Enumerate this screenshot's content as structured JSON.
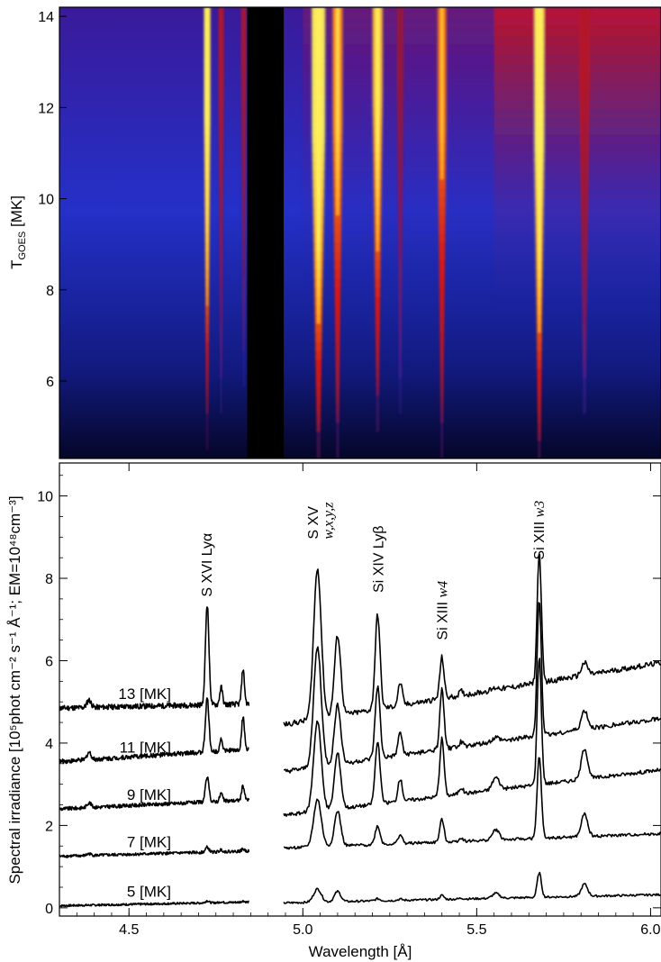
{
  "chart_data": [
    {
      "type": "heatmap",
      "ylabel_main": "T",
      "ylabel_sub": "GOES",
      "ylabel_rest": " [MK]",
      "xlim": [
        4.3,
        6.03
      ],
      "ylim": [
        4.3,
        14.2
      ],
      "yticks": [
        6,
        8,
        10,
        12,
        14
      ],
      "gap": [
        4.84,
        4.945
      ],
      "lines": [
        {
          "x": 4.725,
          "strength": 1.0,
          "width": 0.006,
          "onset": 5.2
        },
        {
          "x": 4.765,
          "strength": 0.45,
          "width": 0.005,
          "onset": 6.0
        },
        {
          "x": 4.83,
          "strength": 0.4,
          "width": 0.005,
          "onset": 6.5
        },
        {
          "x": 5.045,
          "strength": 1.0,
          "width": 0.012,
          "onset": 4.8
        },
        {
          "x": 5.1,
          "strength": 0.8,
          "width": 0.009,
          "onset": 5.0
        },
        {
          "x": 5.215,
          "strength": 0.9,
          "width": 0.009,
          "onset": 5.6
        },
        {
          "x": 5.28,
          "strength": 0.35,
          "width": 0.006,
          "onset": 6.0
        },
        {
          "x": 5.4,
          "strength": 0.75,
          "width": 0.008,
          "onset": 5.0
        },
        {
          "x": 5.68,
          "strength": 1.0,
          "width": 0.009,
          "onset": 4.6
        },
        {
          "x": 5.81,
          "strength": 0.45,
          "width": 0.01,
          "onset": 6.0
        }
      ]
    },
    {
      "type": "line",
      "xlabel": "Wavelength [Å]",
      "ylabel": "Spectral irradiance [10⁵phot cm⁻² s⁻¹ Å⁻¹; EM=10⁴⁸cm⁻³]",
      "xlim": [
        4.3,
        6.03
      ],
      "ylim": [
        -0.2,
        10.8
      ],
      "xticks": [
        4.5,
        5.0,
        5.5,
        6.0
      ],
      "xtick_labels": [
        "4.5",
        "5.0",
        "5.5",
        "6.0"
      ],
      "yticks": [
        0,
        2,
        4,
        6,
        8,
        10
      ],
      "gap": [
        4.845,
        4.945
      ],
      "lines": [
        {
          "x": 4.725,
          "width": 0.005,
          "amp": [
            0.05,
            0.12,
            0.6,
            1.3,
            2.45
          ]
        },
        {
          "x": 4.765,
          "width": 0.004,
          "amp": [
            0.02,
            0.05,
            0.2,
            0.3,
            0.42
          ]
        },
        {
          "x": 4.828,
          "width": 0.004,
          "amp": [
            0.03,
            0.05,
            0.35,
            0.8,
            0.85
          ]
        },
        {
          "x": 4.385,
          "width": 0.006,
          "amp": [
            0.0,
            0.04,
            0.12,
            0.18,
            0.18
          ]
        },
        {
          "x": 5.042,
          "width": 0.011,
          "amp": [
            0.32,
            1.15,
            2.2,
            2.9,
            3.65
          ]
        },
        {
          "x": 5.1,
          "width": 0.009,
          "amp": [
            0.25,
            0.85,
            1.35,
            1.45,
            1.95
          ]
        },
        {
          "x": 5.215,
          "width": 0.007,
          "amp": [
            0.05,
            0.45,
            1.5,
            1.75,
            2.3
          ]
        },
        {
          "x": 5.28,
          "width": 0.006,
          "amp": [
            0.03,
            0.22,
            0.55,
            0.55,
            0.55
          ]
        },
        {
          "x": 5.4,
          "width": 0.006,
          "amp": [
            0.1,
            0.55,
            1.4,
            1.45,
            1.0
          ]
        },
        {
          "x": 5.455,
          "width": 0.006,
          "amp": [
            0.02,
            0.08,
            0.15,
            0.12,
            0.1
          ]
        },
        {
          "x": 5.555,
          "width": 0.01,
          "amp": [
            0.12,
            0.25,
            0.3,
            0.1,
            0.05
          ]
        },
        {
          "x": 5.68,
          "width": 0.006,
          "amp": [
            0.6,
            2.0,
            3.1,
            3.3,
            3.15
          ]
        },
        {
          "x": 5.81,
          "width": 0.009,
          "amp": [
            0.3,
            0.55,
            0.75,
            0.45,
            0.3
          ]
        }
      ],
      "series": [
        {
          "name": "5 [MK]",
          "baseline_left": [
            0.05,
            0.14
          ],
          "baseline_right": [
            0.12,
            0.32
          ]
        },
        {
          "name": "7 [MK]",
          "baseline_left": [
            1.25,
            1.38
          ],
          "baseline_right": [
            1.45,
            1.8
          ]
        },
        {
          "name": "9 [MK]",
          "baseline_left": [
            2.4,
            2.62
          ],
          "baseline_right": [
            2.25,
            3.35
          ]
        },
        {
          "name": "11 [MK]",
          "baseline_left": [
            3.55,
            3.85
          ],
          "baseline_right": [
            3.3,
            4.6
          ]
        },
        {
          "name": "13 [MK]",
          "baseline_left": [
            4.85,
            4.95
          ],
          "baseline_right": [
            4.45,
            5.95
          ]
        }
      ],
      "annotations": [
        {
          "text": "S XVI Lyα",
          "x": 4.725,
          "y": 7.55
        },
        {
          "text": "S XV",
          "x": 5.048,
          "y": 8.95
        },
        {
          "text": "w,x,y,z",
          "x": 5.05,
          "y": 8.95
        },
        {
          "text": "Si XIV Lyβ",
          "x": 5.218,
          "y": 7.65
        },
        {
          "text": "Si XIII",
          "x": 5.402,
          "y": 6.5
        },
        {
          "text": "w4",
          "x": 5.402,
          "y": 6.5
        },
        {
          "text": "Si XIII",
          "x": 5.68,
          "y": 8.45
        },
        {
          "text": "w3",
          "x": 5.68,
          "y": 8.45
        }
      ]
    }
  ]
}
